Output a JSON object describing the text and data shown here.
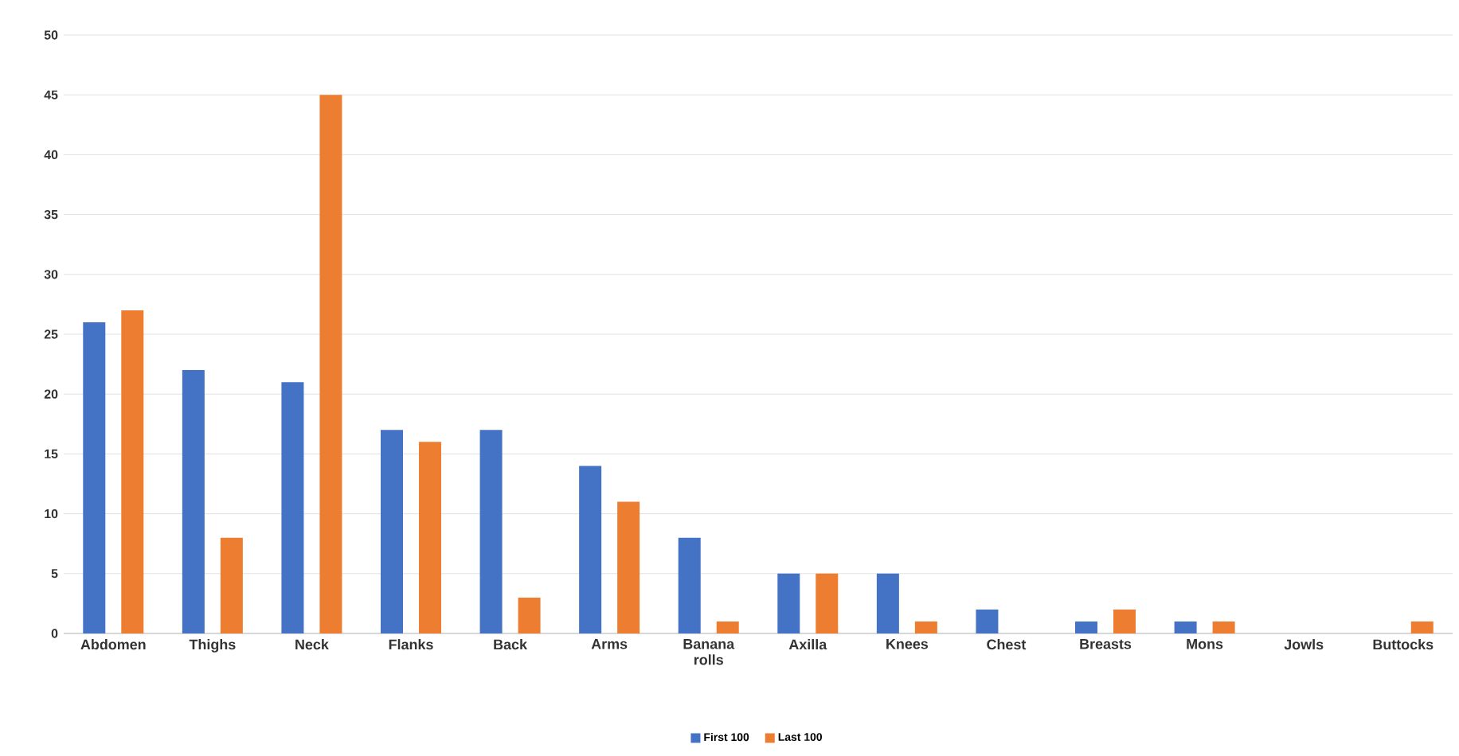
{
  "chart_data": {
    "type": "bar",
    "categories": [
      "Abdomen",
      "Thighs",
      "Neck",
      "Flanks",
      "Back",
      "Arms",
      "Banana rolls",
      "Axilla",
      "Knees",
      "Chest",
      "Breasts",
      "Mons",
      "Jowls",
      "Buttocks"
    ],
    "series": [
      {
        "name": "First 100",
        "color": "#4472c4",
        "values": [
          26,
          22,
          21,
          17,
          17,
          14,
          8,
          5,
          5,
          2,
          1,
          1,
          0,
          0
        ]
      },
      {
        "name": "Last 100",
        "color": "#ed7d31",
        "values": [
          27,
          8,
          45,
          16,
          3,
          11,
          1,
          5,
          1,
          0,
          2,
          1,
          0,
          1
        ]
      }
    ],
    "ylim": [
      0,
      50
    ],
    "yticks": [
      0,
      5,
      10,
      15,
      20,
      25,
      30,
      35,
      40,
      45,
      50
    ],
    "grid": "y",
    "legend": "bottom"
  }
}
